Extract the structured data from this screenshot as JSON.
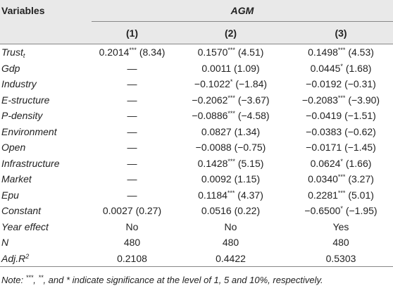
{
  "header": {
    "variables": "Variables",
    "group": "AGM",
    "columns": [
      "(1)",
      "(2)",
      "(3)"
    ]
  },
  "rows": [
    {
      "label": {
        "text": "Trust",
        "sub": "t"
      },
      "cells": [
        {
          "v": "0.2014",
          "s": "***",
          "t": "(8.34)"
        },
        {
          "v": "0.1570",
          "s": "***",
          "t": "(4.51)"
        },
        {
          "v": "0.1498",
          "s": "***",
          "t": "(4.53)"
        }
      ]
    },
    {
      "label": {
        "text": "Gdp"
      },
      "cells": [
        {
          "v": "—"
        },
        {
          "v": "0.0011",
          "t": "(1.09)"
        },
        {
          "v": "0.0445",
          "s": "*",
          "t": "(1.68)"
        }
      ]
    },
    {
      "label": {
        "text": "Industry"
      },
      "cells": [
        {
          "v": "—"
        },
        {
          "v": "−0.1022",
          "s": "*",
          "t": "(−1.84)"
        },
        {
          "v": "−0.0192",
          "t": "(−0.31)"
        }
      ]
    },
    {
      "label": {
        "text": "E-structure"
      },
      "cells": [
        {
          "v": "—"
        },
        {
          "v": "−0.2062",
          "s": "***",
          "t": "(−3.67)"
        },
        {
          "v": "−0.2083",
          "s": "***",
          "t": "(−3.90)"
        }
      ]
    },
    {
      "label": {
        "text": "P-density"
      },
      "cells": [
        {
          "v": "—"
        },
        {
          "v": "−0.0886",
          "s": "***",
          "t": "(−4.58)"
        },
        {
          "v": "−0.0419",
          "t": "(−1.51)"
        }
      ]
    },
    {
      "label": {
        "text": "Environment"
      },
      "cells": [
        {
          "v": "—"
        },
        {
          "v": "0.0827",
          "t": "(1.34)"
        },
        {
          "v": "−0.0383",
          "t": "(−0.62)"
        }
      ]
    },
    {
      "label": {
        "text": "Open"
      },
      "cells": [
        {
          "v": "—"
        },
        {
          "v": "−0.0088",
          "t": "(−0.75)"
        },
        {
          "v": "−0.0171",
          "t": "(−1.45)"
        }
      ]
    },
    {
      "label": {
        "text": "Infrastructure"
      },
      "cells": [
        {
          "v": "—"
        },
        {
          "v": "0.1428",
          "s": "***",
          "t": "(5.15)"
        },
        {
          "v": "0.0624",
          "s": "*",
          "t": "(1.66)"
        }
      ]
    },
    {
      "label": {
        "text": "Market"
      },
      "cells": [
        {
          "v": "—"
        },
        {
          "v": "0.0092",
          "t": "(1.15)"
        },
        {
          "v": "0.0340",
          "s": "***",
          "t": "(3.27)"
        }
      ]
    },
    {
      "label": {
        "text": "Epu"
      },
      "cells": [
        {
          "v": "—"
        },
        {
          "v": "0.1184",
          "s": "***",
          "t": "(4.37)"
        },
        {
          "v": "0.2281",
          "s": "***",
          "t": "(5.01)"
        }
      ]
    },
    {
      "label": {
        "text": "Constant"
      },
      "cells": [
        {
          "v": "0.0027",
          "t": "(0.27)"
        },
        {
          "v": "0.0516",
          "t": "(0.22)"
        },
        {
          "v": "−0.6500",
          "s": "*",
          "t": "(−1.95)"
        }
      ]
    },
    {
      "label": {
        "text": "Year effect"
      },
      "cells": [
        {
          "v": "No"
        },
        {
          "v": "No"
        },
        {
          "v": "Yes"
        }
      ]
    },
    {
      "label": {
        "text": "N"
      },
      "cells": [
        {
          "v": "480"
        },
        {
          "v": "480"
        },
        {
          "v": "480"
        }
      ]
    },
    {
      "label": {
        "text": "Adj.R",
        "sup": "2"
      },
      "cells": [
        {
          "v": "0.2108"
        },
        {
          "v": "0.4422"
        },
        {
          "v": "0.5303"
        }
      ]
    }
  ],
  "note": [
    "Note: ",
    "***",
    ", ",
    "**",
    ", and * indicate significance at the level of 1, 5 and 10%, respectively."
  ]
}
